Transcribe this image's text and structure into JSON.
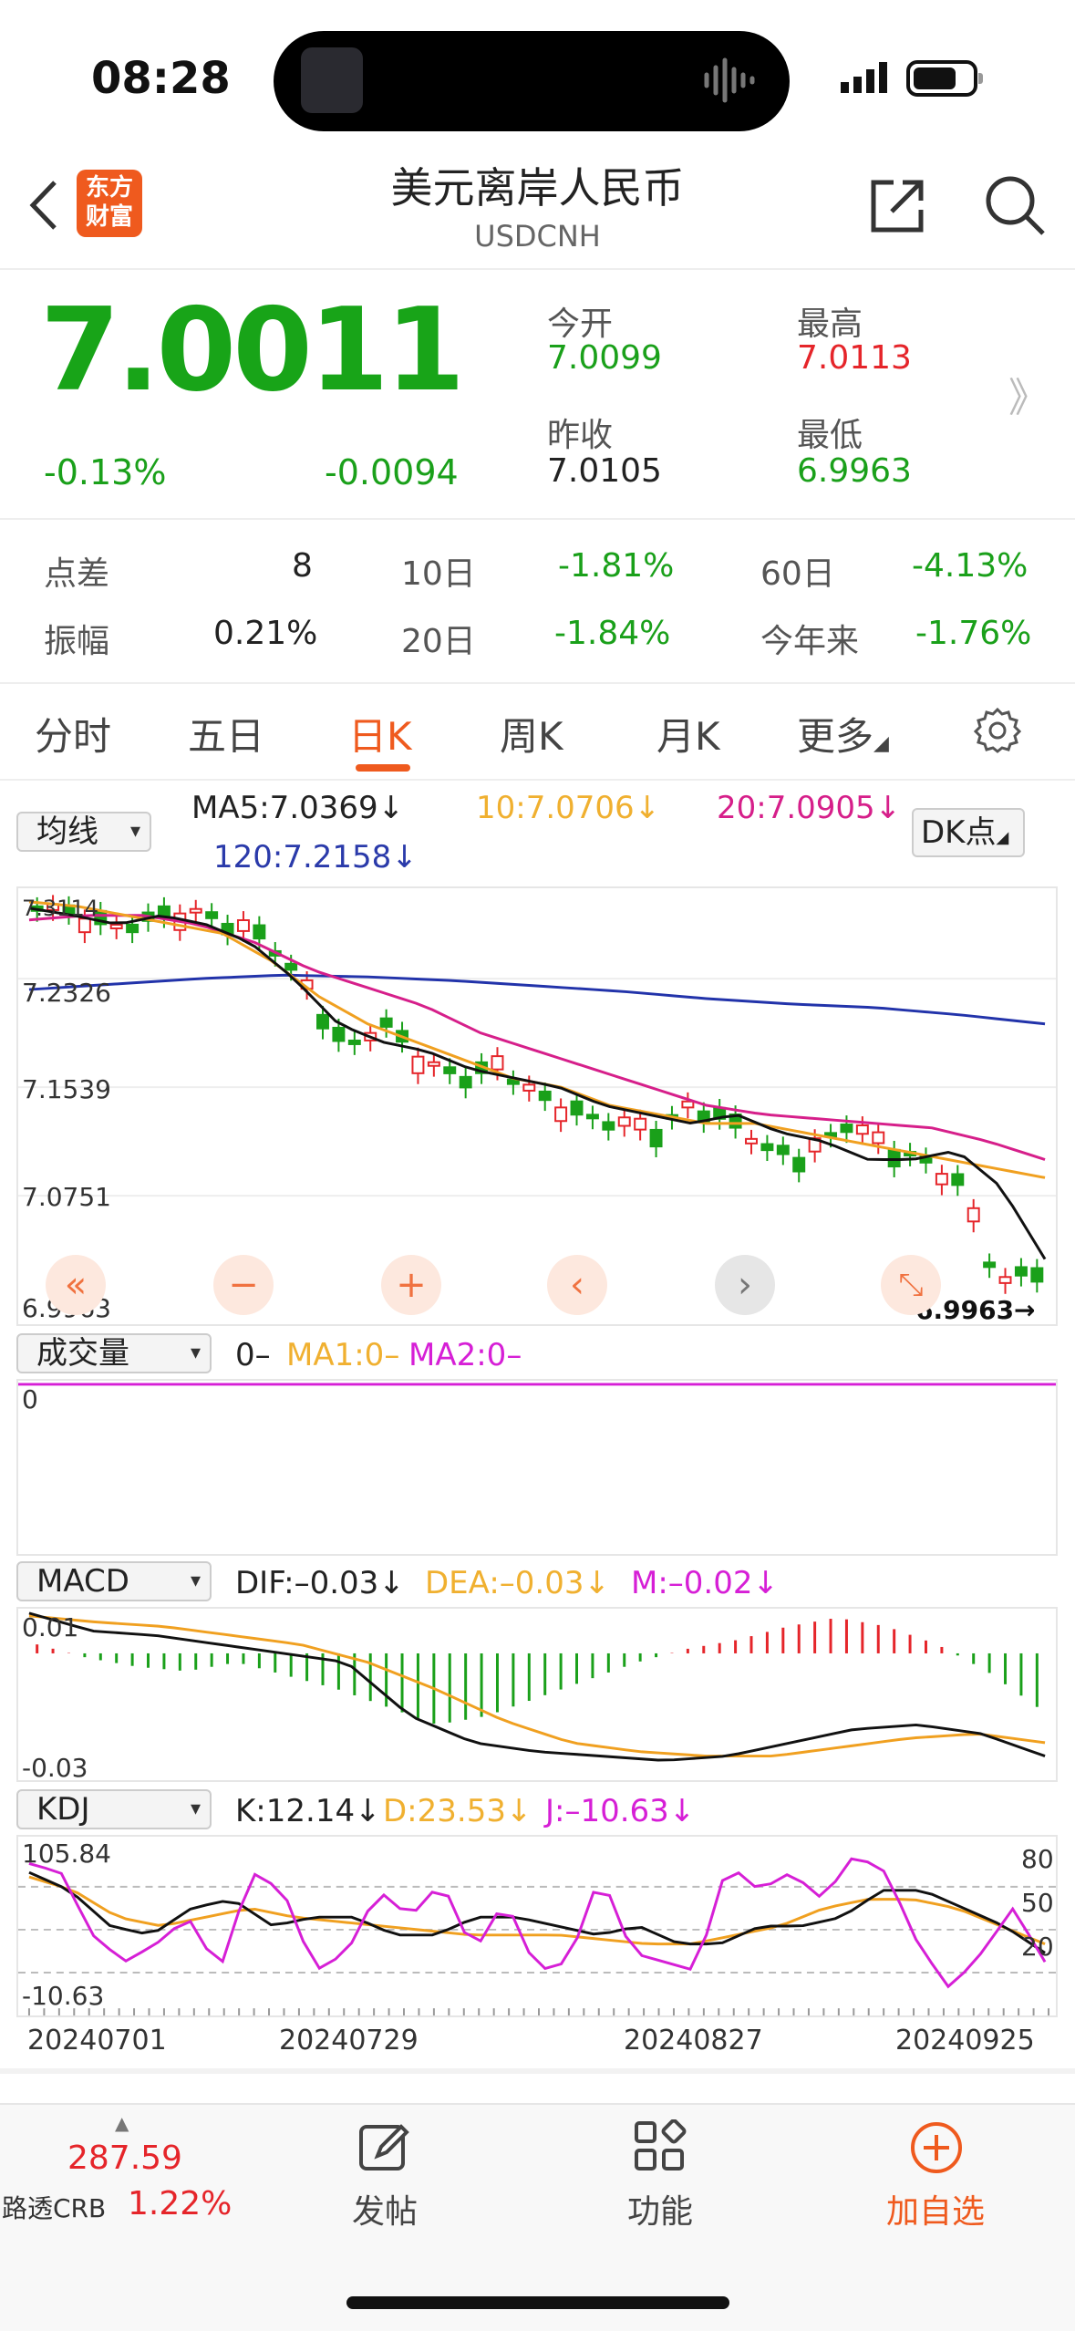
{
  "status_bar": {
    "time": "08:28"
  },
  "header": {
    "logo_line1": "东方",
    "logo_line2": "财富",
    "title": "美元离岸人民币",
    "subtitle": "USDCNH"
  },
  "quote": {
    "price": "7.0011",
    "change_pct": "-0.13%",
    "change": "-0.0094",
    "open_label": "今开",
    "open": "7.0099",
    "high_label": "最高",
    "high": "7.0113",
    "prev_close_label": "昨收",
    "prev_close": "7.0105",
    "low_label": "最低",
    "low": "6.9963",
    "more": "》"
  },
  "stats": [
    {
      "label": "点差",
      "value": "8",
      "label2": "10日",
      "value2": "-1.81%",
      "label3": "60日",
      "value3": "-4.13%"
    },
    {
      "label": "振幅",
      "value": "0.21%",
      "label2": "20日",
      "value2": "-1.84%",
      "label3": "今年来",
      "value3": "-1.76%"
    }
  ],
  "tabs": [
    "分时",
    "五日",
    "日K",
    "周K",
    "月K",
    "更多"
  ],
  "active_tab": "日K",
  "ma_panel": {
    "select": "均线",
    "ma5": "MA5:7.0369↓",
    "ma10": "10:7.0706↓",
    "ma20": "20:7.0905↓",
    "ma120": "120:7.2158↓",
    "dk_button": "DK点",
    "y_labels": [
      "7.3114",
      "7.2326",
      "7.1539",
      "7.0751",
      "6.9963"
    ],
    "high_marker": "7.3114",
    "low_marker": "6.9963→",
    "colors": {
      "ma5": "#111111",
      "ma10": "#f0a020",
      "ma20": "#d61f8a",
      "ma120": "#2233aa",
      "up": "#e5252a",
      "down": "#1aa01a"
    }
  },
  "volume_panel": {
    "select": "成交量",
    "vol": "0–",
    "ma1": "MA1:0–",
    "ma2": "MA2:0–",
    "y_label": "0"
  },
  "macd_panel": {
    "select": "MACD",
    "dif": "DIF:–0.03↓",
    "dea": "DEA:–0.03↓",
    "m": "M:–0.02↓",
    "y_top": "0.01",
    "y_bottom": "-0.03"
  },
  "kdj_panel": {
    "select": "KDJ",
    "k": "K:12.14↓",
    "d": "D:23.53↓",
    "j": "J:–10.63↓",
    "y_top": "105.84",
    "y_bottom": "-10.63",
    "levels": [
      "80",
      "50",
      "20"
    ]
  },
  "x_dates": [
    "20240701",
    "20240729",
    "20240827",
    "20240925"
  ],
  "nav_icons": [
    "double-left-icon",
    "zoom-out-icon",
    "zoom-in-icon",
    "left-icon",
    "right-icon",
    "expand-icon"
  ],
  "bottom_bar": {
    "index_value": "287.59",
    "index_name": "路透CRB",
    "index_pct": "1.22%",
    "post_label": "发帖",
    "func_label": "功能",
    "add_label": "加自选"
  }
}
